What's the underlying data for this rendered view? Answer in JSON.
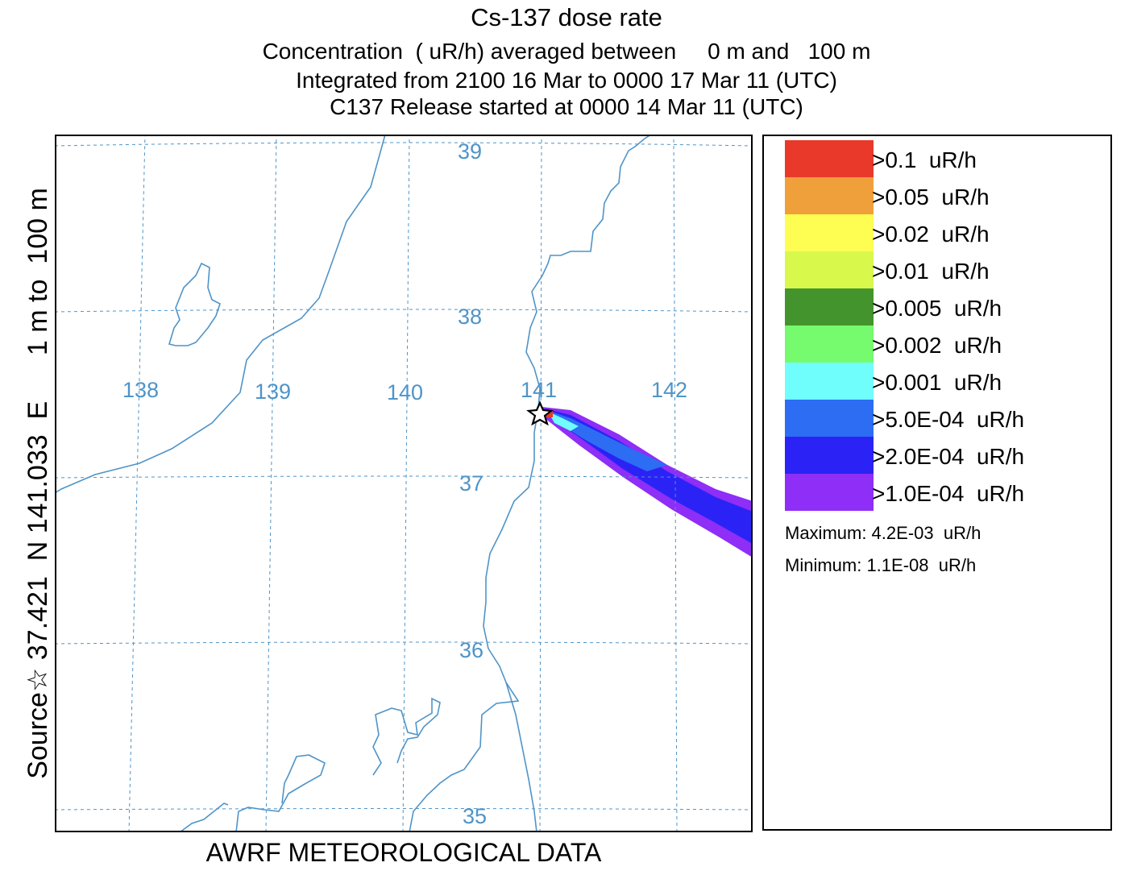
{
  "title": {
    "main": "Cs-137 dose rate",
    "line1": "Concentration  ( uR/h) averaged between     0 m and   100 m",
    "line2": "Integrated from 2100 16 Mar to 0000 17 Mar 11 (UTC)",
    "line3": "C137 Release started at 0000 14 Mar 11 (UTC)"
  },
  "side_label": "Source☆ 37.421  N 141.033  E      1 m to  100 m",
  "footer": "AWRF METEOROLOGICAL DATA",
  "map": {
    "lon_labels": [
      "138",
      "139",
      "140",
      "141",
      "142"
    ],
    "lat_labels": [
      "39",
      "38",
      "37",
      "36",
      "35"
    ],
    "coast_color": "#4f94c8",
    "grid_color": "#4f94c8",
    "source_marker": "star-icon"
  },
  "legend": {
    "items": [
      {
        "label": ">0.1  uR/h",
        "color": "#e8392a"
      },
      {
        "label": ">0.05  uR/h",
        "color": "#f0a03a"
      },
      {
        "label": ">0.02  uR/h",
        "color": "#fefe52"
      },
      {
        "label": ">0.01  uR/h",
        "color": "#d9f84c"
      },
      {
        "label": ">0.005  uR/h",
        "color": "#44942e"
      },
      {
        "label": ">0.002  uR/h",
        "color": "#76fa6e"
      },
      {
        "label": ">0.001  uR/h",
        "color": "#70fefd"
      },
      {
        "label": ">5.0E-04  uR/h",
        "color": "#2c6df4"
      },
      {
        "label": ">2.0E-04  uR/h",
        "color": "#2b23f5"
      },
      {
        "label": ">1.0E-04  uR/h",
        "color": "#8e2ef6"
      }
    ],
    "maximum": "Maximum: 4.2E-03  uR/h",
    "minimum": "Minimum: 1.1E-08  uR/h"
  }
}
